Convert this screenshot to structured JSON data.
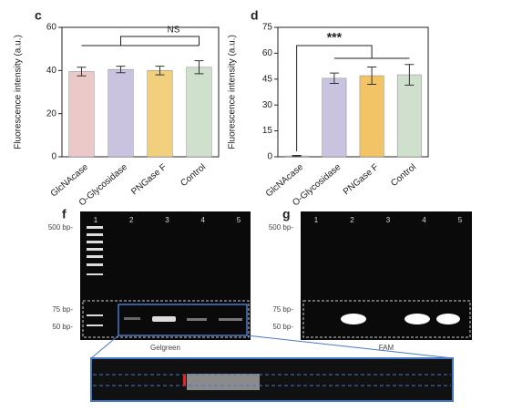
{
  "chart_data": [
    {
      "type": "bar",
      "title": "c",
      "ylabel": "Fluorescence intensity (a.u.)",
      "categories": [
        "GlcNAcase",
        "O-Glycosidase",
        "PNGase F",
        "Control"
      ],
      "values": [
        39.5,
        40.5,
        40,
        41.5
      ],
      "errors": [
        2,
        1.5,
        2,
        3
      ],
      "colors": [
        "#ecc9c9",
        "#c9c3e0",
        "#f1cf7c",
        "#cfe1cc"
      ],
      "ylim": [
        0,
        60
      ],
      "yticks": [
        0,
        20,
        40,
        60
      ],
      "annotation": "NS"
    },
    {
      "type": "bar",
      "title": "d",
      "ylabel": "Fluorescence intensity (a.u.)",
      "categories": [
        "GlcNAcase",
        "O-Glycosidase",
        "PNGase F",
        "Control"
      ],
      "values": [
        0.5,
        45.5,
        47,
        47.5
      ],
      "errors": [
        0.3,
        3,
        5,
        6
      ],
      "colors": [
        "#ecc9c9",
        "#c9c3e0",
        "#f3c465",
        "#cfe1cc"
      ],
      "ylim": [
        0,
        75
      ],
      "yticks": [
        0,
        15,
        30,
        45,
        60,
        75
      ],
      "annotation": "***"
    }
  ],
  "gels": [
    {
      "title": "f",
      "lanes": [
        "1",
        "2",
        "3",
        "4",
        "5"
      ],
      "markers": [
        "500 bp-",
        "75 bp-",
        "50 bp-"
      ],
      "caption": "Gelgreen"
    },
    {
      "title": "g",
      "lanes": [
        "1",
        "2",
        "3",
        "4",
        "5"
      ],
      "markers": [
        "500 bp-",
        "75 bp-",
        "50 bp-"
      ],
      "caption": "FAM"
    }
  ]
}
